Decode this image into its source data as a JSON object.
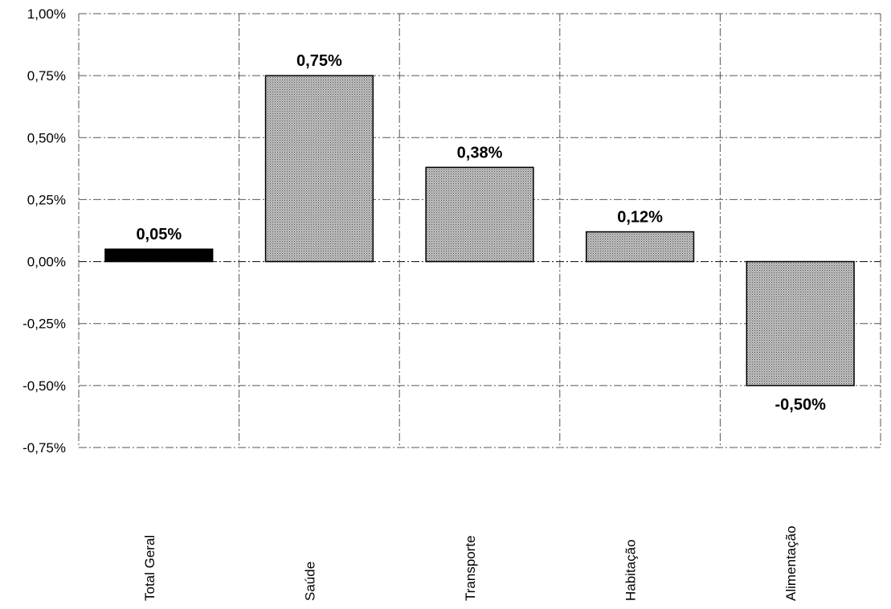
{
  "chart_data": {
    "type": "bar",
    "title": "",
    "xlabel": "",
    "ylabel": "",
    "categories": [
      "Total Geral",
      "Saúde",
      "Transporte",
      "Habitação",
      "Alimentação"
    ],
    "values": [
      0.05,
      0.75,
      0.38,
      0.12,
      -0.5
    ],
    "data_labels": [
      "0,05%",
      "0,75%",
      "0,38%",
      "0,12%",
      "-0,50%"
    ],
    "ylim": [
      -0.75,
      1.0
    ],
    "yticks": [
      1.0,
      0.75,
      0.5,
      0.25,
      0.0,
      -0.25,
      -0.5,
      -0.75
    ],
    "ytick_labels": [
      "1,00%",
      "0,75%",
      "0,50%",
      "0,25%",
      "0,00%",
      "-0,25%",
      "-0,50%",
      "-0,75%"
    ],
    "grid": true,
    "legend": "none",
    "bar_colors": [
      "#000000",
      "#a8a8a8",
      "#a8a8a8",
      "#a8a8a8",
      "#a8a8a8"
    ],
    "bar_patterns": [
      "solid",
      "dotted",
      "dotted",
      "dotted",
      "dotted"
    ]
  }
}
